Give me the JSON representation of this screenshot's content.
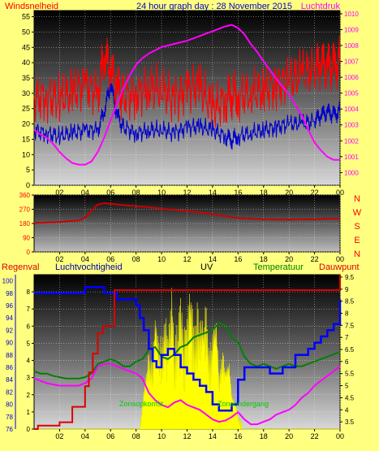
{
  "header": {
    "left": "Windsnelheid",
    "center": "24 hour graph day : 28 November 2015",
    "right": "Luchtdruk"
  },
  "colors": {
    "page_bg": "#ffff80",
    "wind_speed": "#ff0000",
    "wind_gust": "#0000cc",
    "pressure": "#ff00ff",
    "wind_dir": "#cc0000",
    "rain": "#dd0000",
    "humidity": "#0000ff",
    "uv": "#ffff00",
    "temperature": "#008000",
    "dewpoint": "#ff00ff",
    "left_axis_text": "#ff0000",
    "right_axis_text": "#ff00ff",
    "title_text": "#0000cc"
  },
  "chart_data": [
    {
      "type": "line",
      "name": "wind-and-pressure",
      "xticks": [
        "02",
        "04",
        "06",
        "08",
        "10",
        "12",
        "14",
        "16",
        "18",
        "20",
        "22",
        "00"
      ],
      "left_axis": {
        "label": "Windsnelheid",
        "ylim": [
          0,
          57
        ],
        "ticks": [
          "0",
          "5",
          "10",
          "15",
          "20",
          "25",
          "30",
          "35",
          "40",
          "45",
          "50",
          "55"
        ]
      },
      "right_axis": {
        "label": "Luchtdruk",
        "ylim": [
          999.2,
          1010.2
        ],
        "ticks": [
          "1000",
          "1001",
          "1002",
          "1003",
          "1004",
          "1005",
          "1006",
          "1007",
          "1008",
          "1009",
          "1010"
        ]
      },
      "series": [
        {
          "key": "wind_speed",
          "axis": "left",
          "x": [
            0,
            1,
            2,
            3,
            4,
            5,
            5.5,
            6,
            6.5,
            7,
            8,
            9,
            10,
            11,
            12,
            13,
            14,
            15,
            15.5,
            16,
            17,
            18,
            19,
            20,
            21,
            22,
            22.5,
            23,
            23.5,
            24
          ],
          "y": [
            29,
            29,
            28,
            30,
            33,
            30,
            42,
            38,
            32,
            29,
            30,
            32,
            31,
            28,
            32,
            32,
            25,
            28,
            30,
            29,
            30,
            31,
            33,
            34,
            36,
            38,
            40,
            39,
            39,
            40
          ]
        },
        {
          "key": "wind_gust",
          "axis": "left",
          "x": [
            0,
            1,
            2,
            3,
            4,
            5,
            5.5,
            6,
            6.5,
            7,
            8,
            9,
            10,
            11,
            12,
            13,
            14,
            15,
            15.5,
            16,
            17,
            18,
            19,
            20,
            21,
            22,
            22.5,
            23,
            23.5,
            24
          ],
          "y": [
            18,
            17,
            16,
            17,
            18,
            18,
            24,
            33,
            23,
            19,
            17,
            18,
            18,
            17,
            19,
            19,
            18,
            16,
            15,
            16,
            17,
            18,
            19,
            20,
            20,
            21,
            23,
            24,
            23,
            24
          ]
        },
        {
          "key": "pressure",
          "axis": "right",
          "x": [
            0,
            0.5,
            1,
            1.5,
            2,
            2.5,
            3,
            3.5,
            4,
            4.5,
            5,
            5.5,
            6,
            6.5,
            7,
            7.5,
            8,
            8.5,
            9,
            9.5,
            10,
            11,
            12,
            13,
            14,
            15,
            15.5,
            16,
            16.5,
            17,
            17.5,
            18,
            19,
            20,
            21,
            21.5,
            22,
            22.5,
            23,
            23.5,
            24
          ],
          "y": [
            1002.7,
            1002.4,
            1002.2,
            1001.8,
            1001.3,
            1000.9,
            1000.6,
            1000.5,
            1000.5,
            1000.7,
            1001.3,
            1002.2,
            1003.3,
            1004.3,
            1005.3,
            1006.1,
            1006.8,
            1007.2,
            1007.5,
            1007.7,
            1007.9,
            1008.1,
            1008.3,
            1008.6,
            1008.9,
            1009.2,
            1009.3,
            1009.1,
            1008.7,
            1008.1,
            1007.6,
            1007.0,
            1005.9,
            1004.9,
            1003.6,
            1002.7,
            1001.9,
            1001.4,
            1001.0,
            1000.8,
            1000.8
          ]
        }
      ]
    },
    {
      "type": "line",
      "name": "wind-direction",
      "xticks": [
        "02",
        "04",
        "06",
        "08",
        "10",
        "12",
        "14",
        "16",
        "18",
        "20",
        "22",
        "00"
      ],
      "left_axis": {
        "ylim": [
          0,
          360
        ],
        "ticks": [
          "0",
          "90",
          "180",
          "270",
          "360"
        ]
      },
      "compass_labels": [
        "N",
        "W",
        "S",
        "E",
        "N"
      ],
      "series": [
        {
          "key": "wind_dir",
          "x": [
            0,
            1,
            2,
            3,
            3.5,
            4,
            4.5,
            5,
            5.5,
            6,
            7,
            8,
            9,
            10,
            11,
            12,
            13,
            14,
            15,
            16,
            17,
            18,
            19,
            20,
            21,
            22,
            23,
            24
          ],
          "y": [
            183,
            186,
            190,
            196,
            200,
            215,
            260,
            300,
            308,
            305,
            296,
            290,
            283,
            274,
            266,
            258,
            250,
            238,
            226,
            214,
            210,
            206,
            204,
            204,
            206,
            206,
            210,
            210
          ]
        }
      ]
    },
    {
      "type": "line",
      "name": "rain-humidity-uv-temperature",
      "labels": {
        "regenval": "Regenval",
        "humidity": "Luchtvochtigheid",
        "uv": "UV",
        "temperature": "Temperatuur",
        "dewpoint": "Dauwpunt"
      },
      "annotations": [
        "Zonsopkomst",
        "Zonsondergang"
      ],
      "xticks": [
        "02",
        "04",
        "06",
        "08",
        "10",
        "12",
        "14",
        "16",
        "18",
        "20",
        "22",
        "00"
      ],
      "left_axis": {
        "label": "Regenval",
        "ylim": [
          0,
          9
        ],
        "ticks": [
          "0",
          "1",
          "2",
          "3",
          "4",
          "5",
          "6",
          "7",
          "8"
        ]
      },
      "humidity_axis": {
        "label": "Luchtvochtigheid",
        "ylim": [
          76,
          101
        ],
        "ticks": [
          "76",
          "78",
          "80",
          "82",
          "84",
          "86",
          "88",
          "90",
          "92",
          "94",
          "96",
          "98",
          "100"
        ]
      },
      "right_axis": {
        "label": "Temperatuur",
        "ylim": [
          3.2,
          9.6
        ],
        "ticks": [
          "3.5",
          "4",
          "4.5",
          "5",
          "5.5",
          "6",
          "6.5",
          "7",
          "7.5",
          "8",
          "8.5",
          "9",
          "9.5"
        ]
      },
      "series": [
        {
          "key": "rain",
          "axis": "left",
          "x": [
            0,
            0.3,
            1,
            2,
            3,
            4,
            4.3,
            4.6,
            5,
            5.4,
            6,
            6.3,
            24,
            24
          ],
          "y": [
            0,
            0.2,
            0.2,
            0.4,
            1.3,
            2.5,
            3.3,
            4.4,
            5.6,
            6,
            6,
            8.1,
            8.1,
            9
          ]
        },
        {
          "key": "humidity",
          "axis": "humidity",
          "x": [
            0,
            0.5,
            1,
            2,
            3,
            4,
            5,
            5.5,
            6,
            6.5,
            7,
            7.5,
            8,
            8.3,
            8.6,
            9,
            9.3,
            9.6,
            10,
            10.5,
            11,
            11.5,
            12,
            12.5,
            13,
            13.5,
            14,
            14.5,
            15,
            15.5,
            16,
            16.5,
            17,
            17.5,
            18,
            18.5,
            19,
            19.5,
            20,
            20.5,
            21,
            21.5,
            22,
            22.5,
            23,
            23.5,
            24
          ],
          "y": [
            98,
            98,
            98,
            98,
            98,
            99,
            99,
            98,
            98,
            97,
            97,
            97,
            96,
            94,
            92,
            89,
            87,
            86,
            88,
            89,
            88,
            86,
            85,
            84,
            83,
            82,
            80,
            79,
            79,
            80,
            84,
            86,
            86,
            86,
            86,
            85,
            85,
            86,
            86,
            88,
            88,
            89,
            90,
            91,
            92,
            93,
            97
          ]
        },
        {
          "key": "temperature",
          "axis": "right",
          "x": [
            0,
            0.5,
            1,
            1.5,
            2,
            2.5,
            3,
            3.5,
            4,
            4.5,
            5,
            5.5,
            6,
            6.5,
            7,
            7.5,
            8,
            8.5,
            9,
            9.5,
            10,
            10.5,
            11,
            11.5,
            12,
            12.5,
            13,
            13.5,
            14,
            14.5,
            15,
            15.5,
            16,
            16.5,
            17,
            17.5,
            18,
            18.5,
            19,
            19.5,
            20,
            20.5,
            21,
            21.5,
            22,
            22.5,
            23,
            23.5,
            24
          ],
          "y": [
            5.6,
            5.5,
            5.5,
            5.4,
            5.35,
            5.3,
            5.3,
            5.3,
            5.35,
            5.5,
            5.9,
            6.0,
            6.1,
            6.0,
            5.8,
            5.8,
            6.0,
            6.1,
            6.5,
            6.6,
            6.2,
            6.1,
            6.3,
            6.6,
            6.7,
            7.0,
            7.1,
            7.2,
            7.3,
            7.6,
            7.5,
            7.0,
            6.8,
            6.2,
            5.9,
            5.8,
            5.9,
            5.8,
            5.7,
            5.8,
            5.9,
            5.8,
            5.8,
            5.9,
            6.0,
            6.1,
            6.2,
            6.3,
            6.4
          ]
        },
        {
          "key": "dewpoint",
          "axis": "right",
          "x": [
            0,
            0.5,
            1,
            1.5,
            2,
            2.5,
            3,
            3.5,
            4,
            4.5,
            5,
            5.5,
            6,
            6.5,
            7,
            7.5,
            8,
            8.5,
            9,
            9.5,
            10,
            10.5,
            11,
            11.5,
            12,
            12.5,
            13,
            13.5,
            14,
            14.5,
            15,
            15.5,
            16,
            16.5,
            17,
            17.5,
            18,
            18.5,
            19,
            19.5,
            20,
            20.5,
            21,
            21.5,
            22,
            22.5,
            23,
            23.5,
            24
          ],
          "y": [
            5.3,
            5.2,
            5.1,
            5.05,
            5.0,
            5.0,
            5.0,
            5.0,
            5.1,
            5.3,
            5.8,
            5.9,
            5.9,
            5.8,
            5.7,
            5.6,
            5.5,
            5.3,
            4.7,
            4.4,
            4.2,
            4.1,
            4.3,
            4.4,
            4.2,
            4.1,
            4.0,
            3.8,
            3.6,
            3.5,
            3.55,
            3.7,
            3.9,
            3.6,
            3.4,
            3.4,
            3.5,
            3.6,
            3.8,
            3.9,
            4.0,
            4.2,
            4.5,
            4.7,
            5.0,
            5.2,
            5.4,
            5.6,
            5.8
          ]
        },
        {
          "key": "uv",
          "axis": "left",
          "x": [
            0,
            8.3,
            8.5,
            8.8,
            9,
            9.3,
            9.5,
            9.8,
            10,
            10.3,
            10.5,
            10.8,
            11,
            11.3,
            11.5,
            11.8,
            12,
            12.3,
            12.5,
            12.8,
            13,
            13.3,
            13.5,
            13.8,
            14,
            14.3,
            14.5,
            14.8,
            15,
            15.3,
            15.5,
            15.8,
            16,
            16.3,
            24
          ],
          "y": [
            0,
            0,
            1.2,
            2.8,
            4.1,
            3.6,
            5.4,
            4.0,
            4.7,
            5.8,
            3.9,
            6.8,
            4.5,
            5.1,
            6.2,
            4.4,
            5.6,
            6.9,
            4.8,
            6.1,
            5.2,
            4.9,
            6.4,
            3.8,
            4.6,
            5.5,
            3.1,
            4.2,
            2.9,
            3.6,
            1.9,
            1.4,
            0.6,
            0,
            0
          ]
        }
      ]
    }
  ]
}
